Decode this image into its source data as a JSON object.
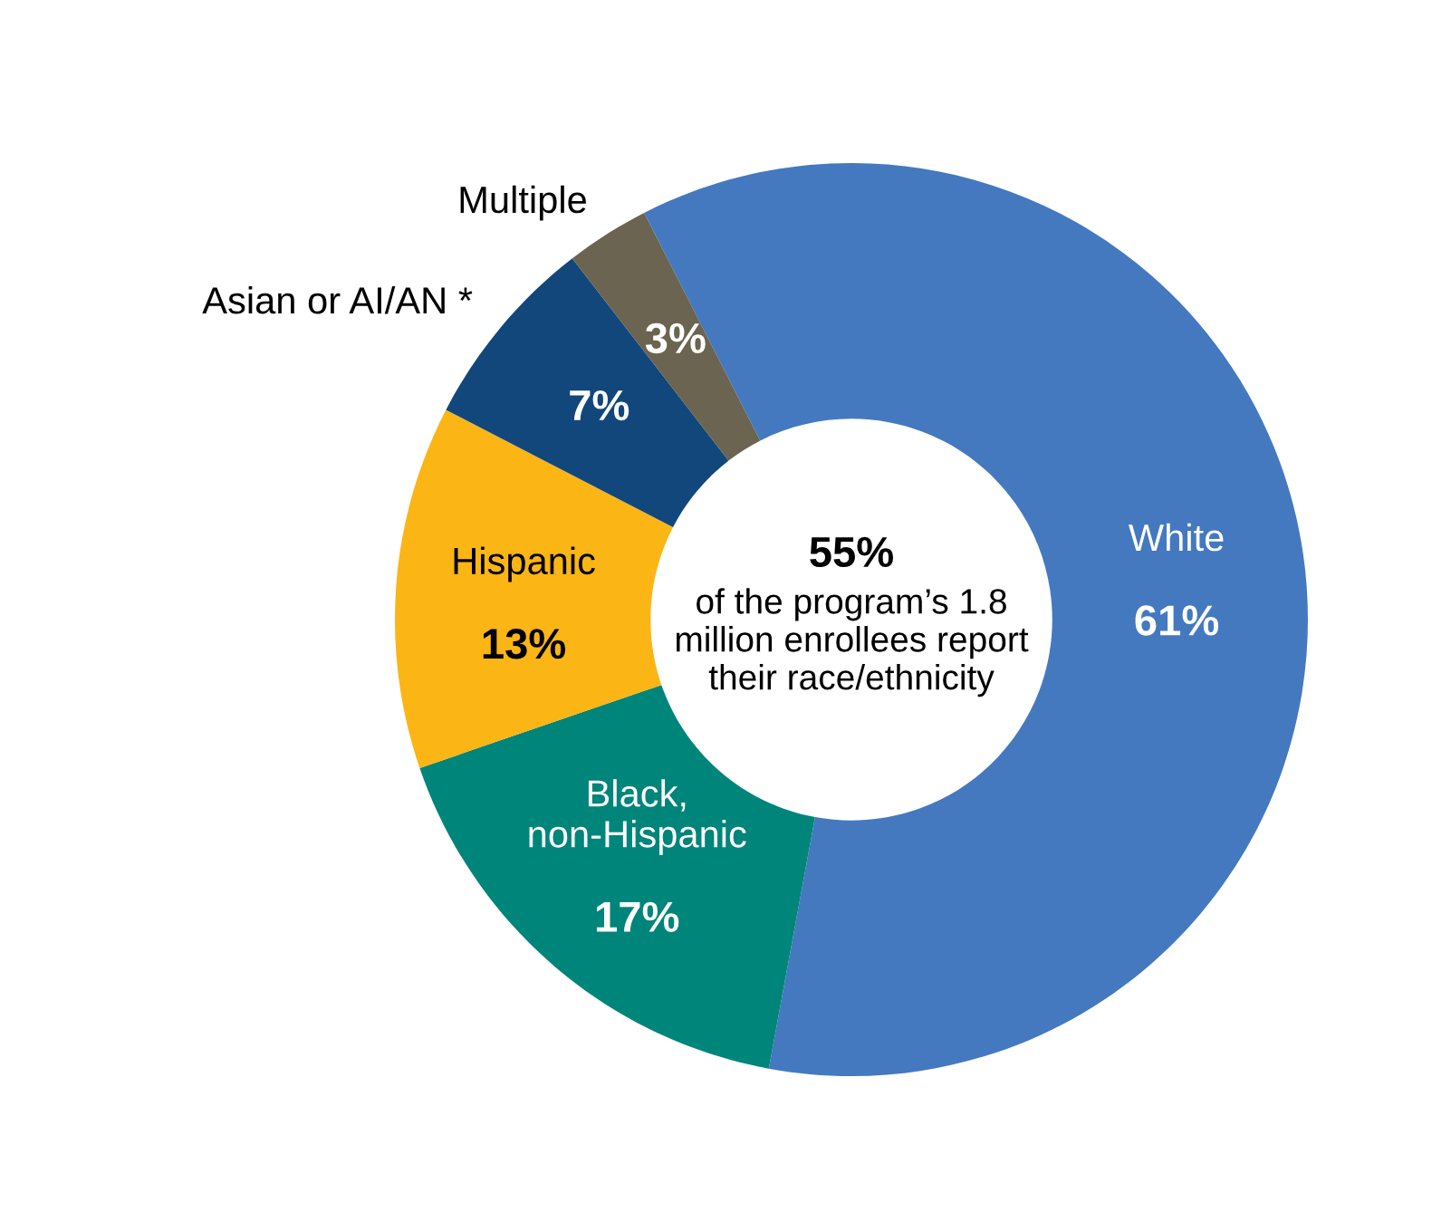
{
  "chart_data": {
    "type": "donut",
    "categories": [
      "White",
      "Black,\nnon-Hispanic",
      "Hispanic",
      "Asian or AI/AN *",
      "Multiple"
    ],
    "values": [
      61,
      17,
      13,
      7,
      3
    ],
    "value_labels": [
      "61%",
      "17%",
      "13%",
      "7%",
      "3%"
    ],
    "colors": [
      "#4479c0",
      "#00857a",
      "#fbb515",
      "#12477c",
      "#6b6450"
    ],
    "annotations": [
      "55%",
      "of the program’s 1.8\nmillion enrollees report\ntheir race/ethnicity"
    ],
    "legend": false
  }
}
